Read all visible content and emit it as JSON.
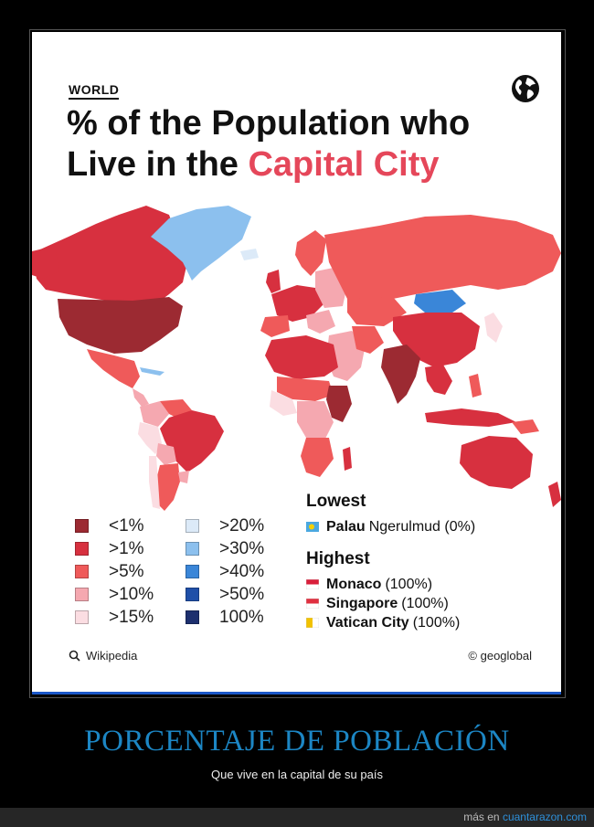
{
  "header": {
    "kicker": "WORLD",
    "title_line1": "% of the Population who",
    "title_line2_plain": "Live in the ",
    "title_line2_accent": "Capital City"
  },
  "map": {
    "icon": "globe-icon"
  },
  "legend": {
    "left": [
      {
        "label": "<1%",
        "color": "#9c2a32"
      },
      {
        "label": ">1%",
        "color": "#d7303f"
      },
      {
        "label": ">5%",
        "color": "#ef5a5a"
      },
      {
        "label": ">10%",
        "color": "#f5a8b0"
      },
      {
        "label": ">15%",
        "color": "#fbdde2"
      }
    ],
    "right": [
      {
        "label": ">20%",
        "color": "#dceaf8"
      },
      {
        "label": ">30%",
        "color": "#8cc0ee"
      },
      {
        "label": ">40%",
        "color": "#3a86d8"
      },
      {
        "label": ">50%",
        "color": "#1f4fa8"
      },
      {
        "label": "100%",
        "color": "#1d2f6e"
      }
    ]
  },
  "lowest": {
    "heading": "Lowest",
    "items": [
      {
        "country": "Palau",
        "detail": "Ngerulmud (0%)",
        "flag": "palau-flag-icon"
      }
    ]
  },
  "highest": {
    "heading": "Highest",
    "items": [
      {
        "country": "Monaco",
        "detail": "(100%)",
        "flag": "monaco-flag-icon"
      },
      {
        "country": "Singapore",
        "detail": "(100%)",
        "flag": "singapore-flag-icon"
      },
      {
        "country": "Vatican City",
        "detail": "(100%)",
        "flag": "vatican-flag-icon"
      }
    ]
  },
  "footer_card": {
    "source": "Wikipedia",
    "credit": "© geoglobal"
  },
  "caption": {
    "title": "PORCENTAJE DE POBLACIÓN",
    "subtitle": "Que vive en la capital de su país"
  },
  "site_footer": {
    "prefix": "más en ",
    "link": "cuantarazon.com"
  }
}
